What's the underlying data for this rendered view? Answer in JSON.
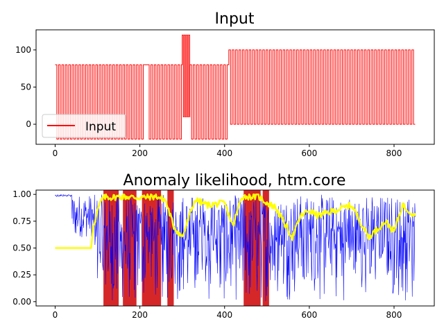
{
  "chart_data": [
    {
      "type": "line",
      "title": "Input",
      "xlim": [
        -45,
        895
      ],
      "ylim": [
        -27,
        127
      ],
      "xticks": [
        0,
        200,
        400,
        600,
        800
      ],
      "yticks": [
        0,
        50,
        100
      ],
      "grid": false,
      "legend": {
        "placement": "lower-left",
        "entries": [
          "Input"
        ]
      },
      "series": [
        {
          "name": "Input",
          "color": "#ff0000",
          "pattern": "square-wave",
          "segments": [
            {
              "x_start": 0,
              "x_end": 210,
              "low": -20,
              "high": 80,
              "period": 8
            },
            {
              "x_start": 210,
              "x_end": 218,
              "low": -20,
              "high": 80,
              "period": 8,
              "note_flat_high": true
            },
            {
              "x_start": 218,
              "x_end": 300,
              "low": -20,
              "high": 80,
              "period": 8
            },
            {
              "x_start": 300,
              "x_end": 318,
              "low": 10,
              "high": 120,
              "period": 5
            },
            {
              "x_start": 318,
              "x_end": 410,
              "low": -20,
              "high": 80,
              "period": 8
            },
            {
              "x_start": 410,
              "x_end": 850,
              "low": 0,
              "high": 100,
              "period": 8
            }
          ]
        }
      ]
    },
    {
      "type": "line",
      "title": "Anomaly likelihood, htm.core",
      "xlim": [
        -45,
        895
      ],
      "ylim": [
        -0.04,
        1.04
      ],
      "xticks": [
        0,
        200,
        400,
        600,
        800
      ],
      "yticks": [
        0.0,
        0.25,
        0.5,
        0.75,
        1.0
      ],
      "grid": false,
      "shaded_regions": {
        "color": "#d62728",
        "ranges": [
          [
            114,
            150
          ],
          [
            160,
            192
          ],
          [
            205,
            250
          ],
          [
            265,
            280
          ],
          [
            445,
            485
          ],
          [
            490,
            505
          ]
        ]
      },
      "series": [
        {
          "name": "anomaly",
          "color": "#0000ff",
          "x_range": [
            0,
            850
          ],
          "description_values": "dense noisy signal between 0 and 1, starts near 1.0 and drops after x≈40"
        },
        {
          "name": "likelihood",
          "color": "#ffff00",
          "x": [
            0,
            85,
            90,
            100,
            110,
            120,
            130,
            160,
            200,
            240,
            260,
            280,
            300,
            330,
            360,
            400,
            420,
            440,
            480,
            500,
            520,
            560,
            580,
            600,
            620,
            660,
            700,
            740,
            780,
            800,
            820,
            850
          ],
          "y": [
            0.5,
            0.5,
            0.7,
            0.85,
            0.95,
            0.98,
            0.97,
            0.98,
            0.97,
            0.98,
            0.95,
            0.7,
            0.6,
            0.95,
            0.9,
            0.92,
            0.7,
            0.98,
            0.98,
            0.92,
            0.88,
            0.6,
            0.8,
            0.85,
            0.8,
            0.85,
            0.9,
            0.6,
            0.75,
            0.65,
            0.9,
            0.8
          ]
        }
      ]
    }
  ]
}
